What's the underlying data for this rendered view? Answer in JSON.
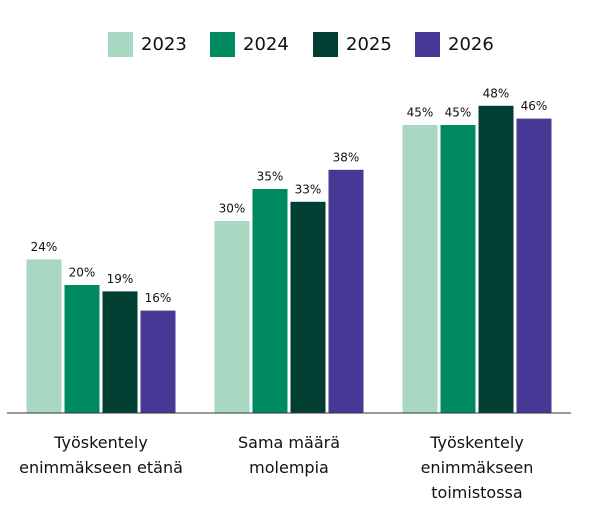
{
  "chart_data": {
    "type": "bar",
    "categories": [
      "Työskentely enimmäkseen etänä",
      "Sama määrä molempia",
      "Työskentely enimmäkseen toimistossa"
    ],
    "series": [
      {
        "name": "2023",
        "color": "#a8d8c1",
        "values": [
          24,
          30,
          45
        ],
        "value_labels": [
          "24%",
          "30%",
          "45%"
        ]
      },
      {
        "name": "2024",
        "color": "#008a60",
        "values": [
          20,
          35,
          45
        ],
        "value_labels": [
          "20%",
          "35%",
          "45%"
        ]
      },
      {
        "name": "2025",
        "color": "#003f32",
        "values": [
          19,
          33,
          48
        ],
        "value_labels": [
          "19%",
          "33%",
          "48%"
        ]
      },
      {
        "name": "2026",
        "color": "#473a97",
        "values": [
          16,
          38,
          46
        ],
        "value_labels": [
          "16%",
          "38%",
          "46%"
        ]
      }
    ],
    "ylim": [
      0,
      60
    ]
  }
}
